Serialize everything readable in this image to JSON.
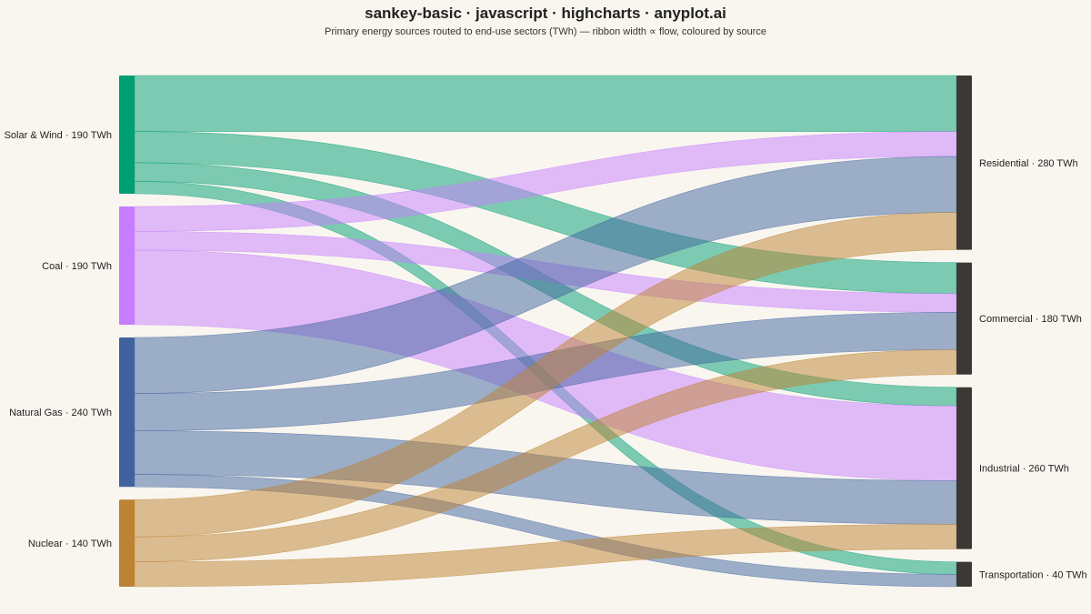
{
  "title": "sankey-basic · javascript · highcharts · anyplot.ai",
  "subtitle": "Primary energy sources routed to end-use sectors (TWh) — ribbon width ∝ flow, coloured by source",
  "chart_data": {
    "type": "sankey",
    "unit": "TWh",
    "sources": [
      {
        "id": "solar_wind",
        "name": "Solar & Wind",
        "label": "Solar & Wind · 190 TWh",
        "total": 190,
        "color": "#009e73"
      },
      {
        "id": "coal",
        "name": "Coal",
        "label": "Coal · 190 TWh",
        "total": 190,
        "color": "#c77dff"
      },
      {
        "id": "natural_gas",
        "name": "Natural Gas",
        "label": "Natural Gas · 240 TWh",
        "total": 240,
        "color": "#4063a0"
      },
      {
        "id": "nuclear",
        "name": "Nuclear",
        "label": "Nuclear · 140 TWh",
        "total": 140,
        "color": "#bd8232"
      }
    ],
    "targets": [
      {
        "id": "residential",
        "name": "Residential",
        "label": "Residential · 280 TWh",
        "total": 280,
        "color": "#3a3935"
      },
      {
        "id": "commercial",
        "name": "Commercial",
        "label": "Commercial · 180 TWh",
        "total": 180,
        "color": "#3a3935"
      },
      {
        "id": "industrial",
        "name": "Industrial",
        "label": "Industrial · 260 TWh",
        "total": 260,
        "color": "#3a3935"
      },
      {
        "id": "transportation",
        "name": "Transportation",
        "label": "Transportation · 40 TWh",
        "total": 40,
        "color": "#3a3935"
      }
    ],
    "links": [
      {
        "from": "solar_wind",
        "to": "residential",
        "value": 90
      },
      {
        "from": "solar_wind",
        "to": "commercial",
        "value": 50
      },
      {
        "from": "solar_wind",
        "to": "industrial",
        "value": 30
      },
      {
        "from": "solar_wind",
        "to": "transportation",
        "value": 20
      },
      {
        "from": "coal",
        "to": "residential",
        "value": 40
      },
      {
        "from": "coal",
        "to": "commercial",
        "value": 30
      },
      {
        "from": "coal",
        "to": "industrial",
        "value": 120
      },
      {
        "from": "natural_gas",
        "to": "residential",
        "value": 90
      },
      {
        "from": "natural_gas",
        "to": "commercial",
        "value": 60
      },
      {
        "from": "natural_gas",
        "to": "industrial",
        "value": 70
      },
      {
        "from": "natural_gas",
        "to": "transportation",
        "value": 20
      },
      {
        "from": "nuclear",
        "to": "residential",
        "value": 60
      },
      {
        "from": "nuclear",
        "to": "commercial",
        "value": 40
      },
      {
        "from": "nuclear",
        "to": "industrial",
        "value": 40
      }
    ]
  }
}
